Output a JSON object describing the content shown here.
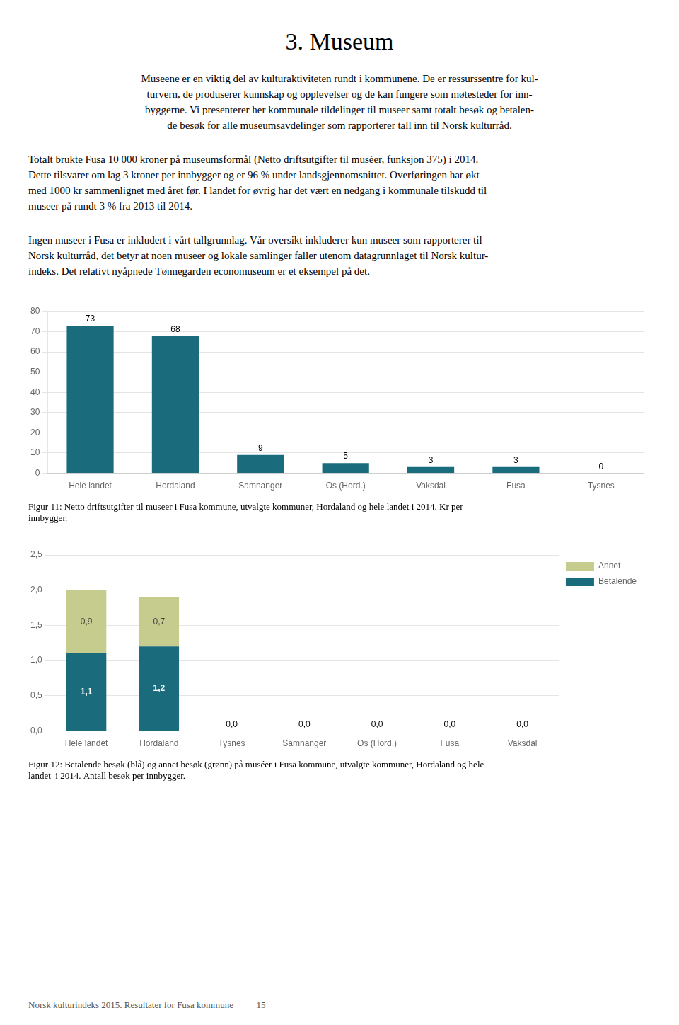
{
  "title": "3.  Museum",
  "annotations": [
    "Museene er en viktig del av kulturaktiviteten rundt i kommunene. De er ressurssentre for kul-\nturvern, de produserer kunnskap og opplevelser og de kan fungere som møtesteder for inn-\nbyggerne. Vi presenterer her kommunale tildelinger til museer samt totalt besøk og betalen-\nde besøk for alle museumsavdelinger som rapporterer tall inn til Norsk kulturråd.",
    "Totalt brukte Fusa 10 000 kroner på museumsformål (Netto driftsutgifter til muséer, funksjon 375) i 2014.\nDette tilsvarer om lag 3 kroner per innbygger og er 96 % under landsgjennomsnittet. Overføringen har økt\nmed 1000 kr sammenlignet med året før. I landet for øvrig har det vært en nedgang i kommunale tilskudd til\nmuseer på rundt 3 % fra 2013 til 2014.",
    "Ingen museer i Fusa er inkludert i vårt tallgrunnlag. Vår oversikt inkluderer kun museer som rapporterer til\nNorsk kulturråd, det betyr at noen museer og lokale samlinger faller utenom datagrunnlaget til Norsk kultur-\nindeks. Det relativt nyåpnede Tønnegarden economuseum er et eksempel på det.",
    "Norsk kulturindeks 2015. Resultater for Fusa kommune          15"
  ],
  "chart_data": [
    {
      "type": "bar",
      "title": "Figur 11: Netto driftsutgifter til museer i Fusa kommune, utvalgte kommuner, Hordaland og hele landet i 2014. Kr per\ninnbygger.",
      "categories": [
        "Hele landet",
        "Hordaland",
        "Samnanger",
        "Os (Hord.)",
        "Vaksdal",
        "Fusa",
        "Tysnes"
      ],
      "values": [
        73,
        68,
        9,
        5,
        3,
        3,
        0
      ],
      "color": "#1a6b7c",
      "ylim": [
        0,
        80
      ],
      "yticks": [
        0,
        10,
        20,
        30,
        40,
        50,
        60,
        70,
        80
      ],
      "grid": true,
      "data_labels": true
    },
    {
      "type": "bar",
      "title": "Figur 12: Betalende besøk (blå) og annet besøk (grønn) på muséer i Fusa kommune, utvalgte kommuner, Hordaland og hele\nlandet  i 2014. Antall besøk per innbygger.",
      "categories": [
        "Hele landet",
        "Hordaland",
        "Tysnes",
        "Samnanger",
        "Os (Hord.)",
        "Fusa",
        "Vaksdal"
      ],
      "series": [
        {
          "name": "Betalende",
          "color": "#1a6b7c",
          "values": [
            1.1,
            1.2,
            0.0,
            0.0,
            0.0,
            0.0,
            0.0
          ],
          "value_labels": [
            "1,1",
            "1,2",
            "0,0",
            "0,0",
            "0,0",
            "0,0",
            "0,0"
          ]
        },
        {
          "name": "Annet",
          "color": "#c5cc8e",
          "values": [
            0.9,
            0.7,
            0.0,
            0.0,
            0.0,
            0.0,
            0.0
          ],
          "value_labels": [
            "0,9",
            "0,7",
            null,
            null,
            null,
            null,
            null
          ]
        }
      ],
      "stacked": true,
      "ylim": [
        0,
        2.5
      ],
      "yticks": [
        {
          "value": 0.0,
          "label": "0,0"
        },
        {
          "value": 0.5,
          "label": "0,5"
        },
        {
          "value": 1.0,
          "label": "1,0"
        },
        {
          "value": 1.5,
          "label": "1,5"
        },
        {
          "value": 2.0,
          "label": "2,0"
        },
        {
          "value": 2.5,
          "label": "2,5"
        }
      ],
      "grid": true,
      "legend": "right",
      "data_labels": true
    }
  ]
}
